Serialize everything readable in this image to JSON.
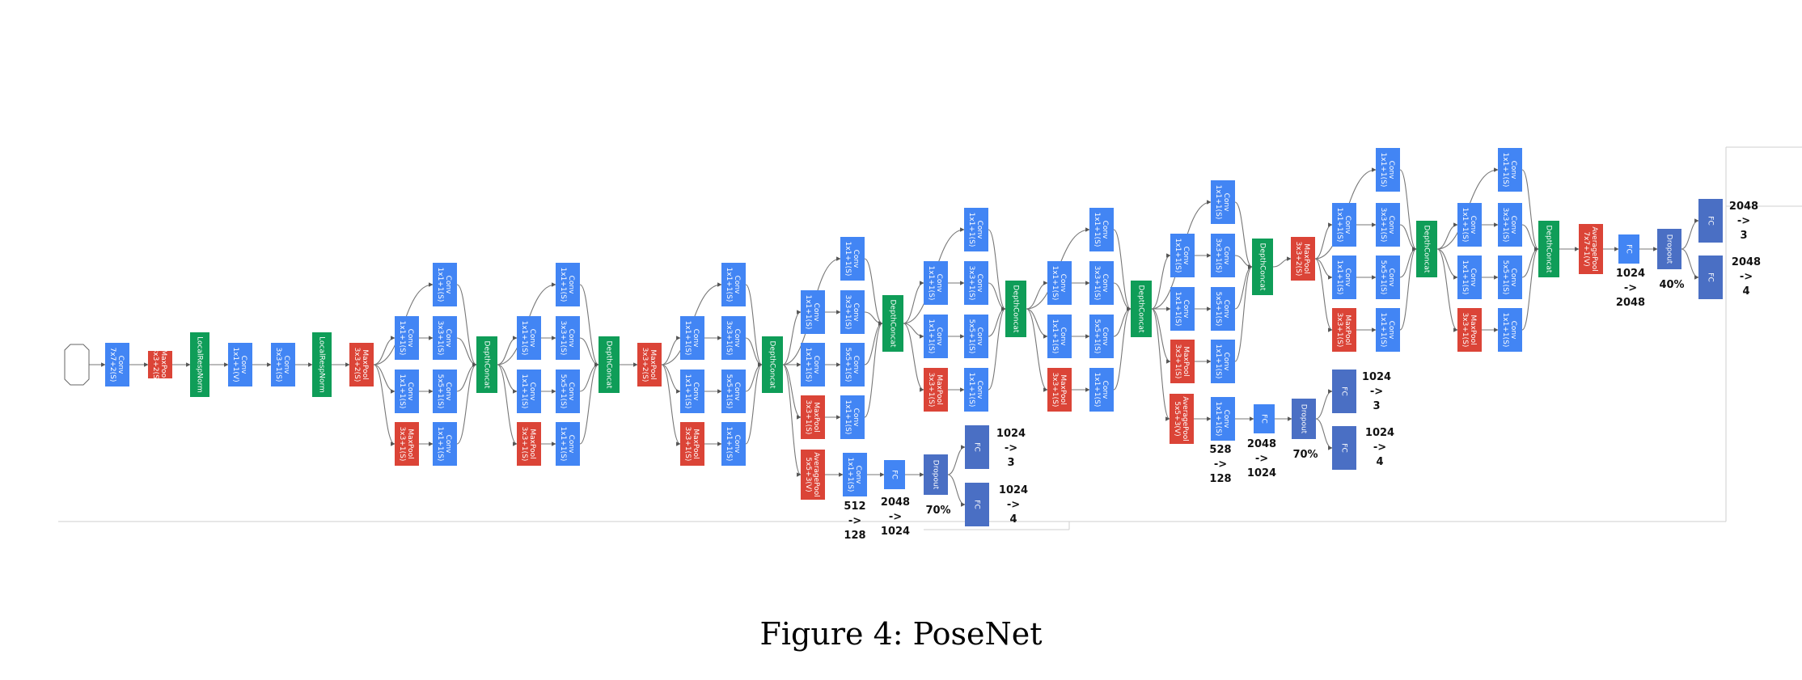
{
  "caption": {
    "prefix": "Figure 4:",
    "title": "PoseNet"
  },
  "colors": {
    "conv": "#4285f4",
    "pool": "#db4437",
    "concat": "#0f9d58",
    "fc": "#4a6fc4",
    "input": "#ffffff",
    "edge": "#777777"
  },
  "icons": {
    "node": "rect-node",
    "arrow": "arrowhead"
  },
  "layers": {
    "input": "input",
    "conv7": "Conv 7x7+2(S)",
    "maxpool1": "MaxPool 3x3+2(S)",
    "lrn1": "LocalRespNorm",
    "conv1v": "Conv 1x1+1(V)",
    "conv3": "Conv 3x3+1(S)",
    "lrn2": "LocalRespNorm",
    "maxpool2": "MaxPool 3x3+2(S)",
    "conv11": "Conv 1x1+1(S)",
    "conv33": "Conv 3x3+1(S)",
    "conv55": "Conv 5x5+1(S)",
    "mp31": "MaxPool 3x3+1(S)",
    "depthconcat": "DepthConcat",
    "avgpool5": "AveragePool 5x5+3(V)",
    "avgpool7": "AveragePool 7x7+1(V)",
    "fc": "FC",
    "dropout": "Dropout"
  },
  "heads": {
    "aux1": {
      "conv_dims": [
        "512",
        "->",
        "128"
      ],
      "fc_dims": [
        "2048",
        "->",
        "1024"
      ],
      "dropout": "70%",
      "out_xyz": [
        "1024",
        "->",
        "3"
      ],
      "out_q": [
        "1024",
        "->",
        "4"
      ]
    },
    "aux2": {
      "conv_dims": [
        "528",
        "->",
        "128"
      ],
      "fc_dims": [
        "2048",
        "->",
        "1024"
      ],
      "dropout": "70%",
      "out_xyz": [
        "1024",
        "->",
        "3"
      ],
      "out_q": [
        "1024",
        "->",
        "4"
      ]
    },
    "main": {
      "fc_dims": [
        "1024",
        "->",
        "2048"
      ],
      "dropout": "40%",
      "out_xyz": [
        "2048",
        "->",
        "3"
      ],
      "out_q": [
        "2048",
        "->",
        "4"
      ]
    }
  }
}
